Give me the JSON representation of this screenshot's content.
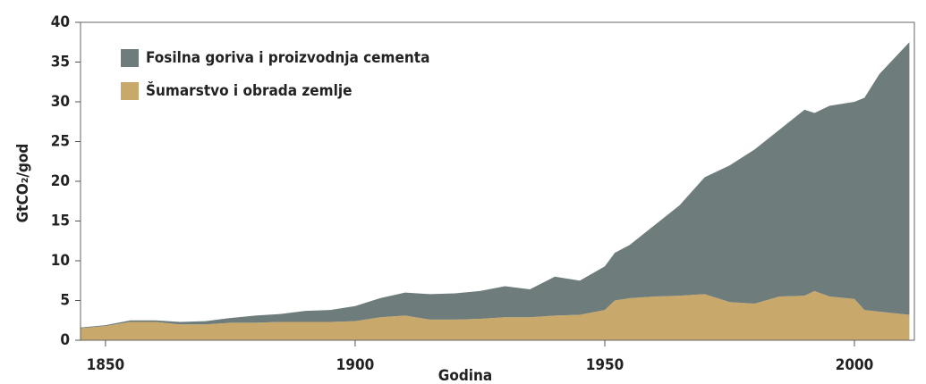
{
  "chart_data": {
    "type": "stacked_area",
    "x_label": "Godina",
    "y_label": "GtCO₂/god",
    "x": [
      1845,
      1850,
      1855,
      1860,
      1865,
      1870,
      1875,
      1880,
      1885,
      1890,
      1895,
      1900,
      1905,
      1910,
      1915,
      1920,
      1925,
      1930,
      1935,
      1940,
      1945,
      1950,
      1952,
      1955,
      1960,
      1965,
      1970,
      1975,
      1980,
      1985,
      1990,
      1992,
      1995,
      2000,
      2002,
      2005,
      2008,
      2011
    ],
    "series": [
      {
        "name": "Fosilna goriva i proizvodnja cementa",
        "color": "#6e7c7b",
        "values": [
          0.1,
          0.1,
          0.2,
          0.2,
          0.3,
          0.4,
          0.6,
          0.9,
          1.0,
          1.4,
          1.5,
          1.9,
          2.4,
          2.9,
          3.2,
          3.3,
          3.5,
          3.9,
          3.5,
          4.9,
          4.3,
          5.5,
          6.0,
          6.7,
          9.0,
          11.4,
          14.7,
          17.2,
          19.4,
          21.0,
          23.4,
          22.4,
          24.0,
          24.8,
          26.7,
          29.9,
          32.1,
          34.3
        ]
      },
      {
        "name": "Šumarstvo i obrada zemlje",
        "color": "#c9a96b",
        "values": [
          1.5,
          1.8,
          2.3,
          2.3,
          2.0,
          2.0,
          2.2,
          2.2,
          2.3,
          2.3,
          2.3,
          2.4,
          2.9,
          3.1,
          2.6,
          2.6,
          2.7,
          2.9,
          2.9,
          3.1,
          3.2,
          3.8,
          5.0,
          5.3,
          5.5,
          5.6,
          5.8,
          4.8,
          4.6,
          5.5,
          5.6,
          6.2,
          5.5,
          5.2,
          3.8,
          3.6,
          3.4,
          3.2
        ]
      }
    ],
    "xlim": [
      1845,
      2012
    ],
    "xticks": [
      1850,
      1900,
      1950,
      2000
    ],
    "ylim": [
      0,
      40
    ],
    "yticks": [
      0,
      5,
      10,
      15,
      20,
      25,
      30,
      35,
      40
    ],
    "legend": "top-left"
  }
}
